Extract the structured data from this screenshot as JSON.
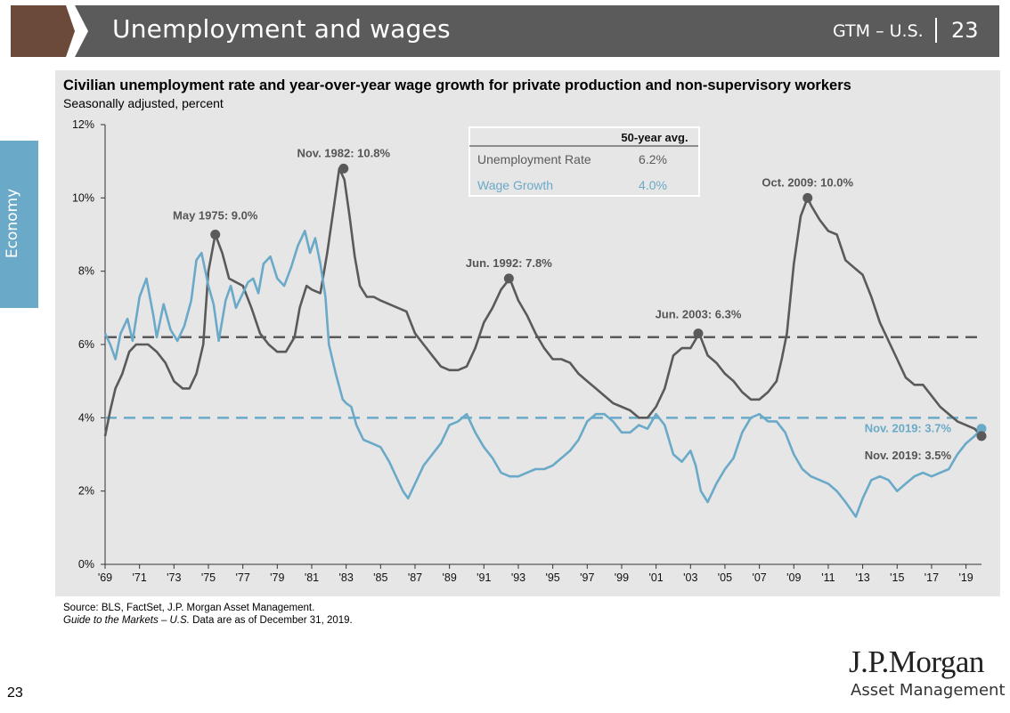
{
  "header": {
    "title": "Unemployment and wages",
    "gtm": "GTM – U.S.",
    "page": "23"
  },
  "sidebar": {
    "label": "Economy"
  },
  "chart_data": {
    "type": "line",
    "title": "Civilian unemployment rate and year-over-year wage growth for private production and non-supervisory workers",
    "subtitle": "Seasonally adjusted, percent",
    "xlim": [
      1969.0,
      2019.9
    ],
    "ylim": [
      0,
      12
    ],
    "yticks": [
      0,
      2,
      4,
      6,
      8,
      10,
      12
    ],
    "ytick_labels": [
      "0%",
      "2%",
      "4%",
      "6%",
      "8%",
      "10%",
      "12%"
    ],
    "xticks": [
      1969,
      1971,
      1973,
      1975,
      1977,
      1979,
      1981,
      1983,
      1985,
      1987,
      1989,
      1991,
      1993,
      1995,
      1997,
      1999,
      2001,
      2003,
      2005,
      2007,
      2009,
      2011,
      2013,
      2015,
      2017,
      2019
    ],
    "xtick_labels": [
      "'69",
      "'71",
      "'73",
      "'75",
      "'77",
      "'79",
      "'81",
      "'83",
      "'85",
      "'87",
      "'89",
      "'91",
      "'93",
      "'95",
      "'97",
      "'99",
      "'01",
      "'03",
      "'05",
      "'07",
      "'09",
      "'11",
      "'13",
      "'15",
      "'17",
      "'19"
    ],
    "colors": {
      "unemployment": "#5a5a5a",
      "wage": "#6aaac8"
    },
    "grid": false,
    "series": [
      {
        "name": "Unemployment Rate",
        "color": "#5a5a5a",
        "x": [
          1969.0,
          1969.3,
          1969.6,
          1970.0,
          1970.4,
          1970.8,
          1971.0,
          1971.5,
          1972.0,
          1972.5,
          1973.0,
          1973.5,
          1973.9,
          1974.3,
          1974.7,
          1975.0,
          1975.4,
          1975.8,
          1976.2,
          1976.6,
          1977.0,
          1977.5,
          1978.0,
          1978.5,
          1979.0,
          1979.5,
          1980.0,
          1980.3,
          1980.7,
          1981.0,
          1981.5,
          1981.9,
          1982.3,
          1982.6,
          1982.9,
          1983.2,
          1983.5,
          1983.8,
          1984.2,
          1984.6,
          1985.0,
          1985.5,
          1986.0,
          1986.5,
          1987.0,
          1987.5,
          1988.0,
          1988.5,
          1989.0,
          1989.5,
          1990.0,
          1990.5,
          1991.0,
          1991.5,
          1992.0,
          1992.5,
          1993.0,
          1993.5,
          1994.0,
          1994.5,
          1995.0,
          1995.5,
          1996.0,
          1996.5,
          1997.0,
          1997.5,
          1998.0,
          1998.5,
          1999.0,
          1999.5,
          2000.0,
          2000.5,
          2001.0,
          2001.5,
          2002.0,
          2002.5,
          2003.0,
          2003.5,
          2004.0,
          2004.5,
          2005.0,
          2005.5,
          2006.0,
          2006.5,
          2007.0,
          2007.5,
          2008.0,
          2008.3,
          2008.6,
          2009.0,
          2009.4,
          2009.8,
          2010.0,
          2010.5,
          2011.0,
          2011.5,
          2012.0,
          2012.5,
          2013.0,
          2013.5,
          2014.0,
          2014.5,
          2015.0,
          2015.5,
          2016.0,
          2016.5,
          2017.0,
          2017.5,
          2018.0,
          2018.5,
          2019.0,
          2019.5,
          2019.9
        ],
        "y": [
          3.5,
          4.2,
          4.8,
          5.2,
          5.8,
          6.0,
          6.0,
          6.0,
          5.8,
          5.5,
          5.0,
          4.8,
          4.8,
          5.2,
          6.0,
          8.0,
          9.0,
          8.5,
          7.8,
          7.7,
          7.6,
          7.0,
          6.3,
          6.0,
          5.8,
          5.8,
          6.2,
          7.0,
          7.6,
          7.5,
          7.4,
          8.5,
          9.8,
          10.8,
          10.5,
          9.5,
          8.4,
          7.6,
          7.3,
          7.3,
          7.2,
          7.1,
          7.0,
          6.9,
          6.3,
          6.0,
          5.7,
          5.4,
          5.3,
          5.3,
          5.4,
          5.9,
          6.6,
          7.0,
          7.5,
          7.8,
          7.2,
          6.8,
          6.3,
          5.9,
          5.6,
          5.6,
          5.5,
          5.2,
          5.0,
          4.8,
          4.6,
          4.4,
          4.3,
          4.2,
          4.0,
          4.0,
          4.3,
          4.8,
          5.7,
          5.9,
          5.9,
          6.3,
          5.7,
          5.5,
          5.2,
          5.0,
          4.7,
          4.5,
          4.5,
          4.7,
          5.0,
          5.6,
          6.3,
          8.2,
          9.5,
          10.0,
          9.8,
          9.4,
          9.1,
          9.0,
          8.3,
          8.1,
          7.9,
          7.3,
          6.6,
          6.1,
          5.6,
          5.1,
          4.9,
          4.9,
          4.6,
          4.3,
          4.1,
          3.9,
          3.8,
          3.7,
          3.5
        ]
      },
      {
        "name": "Wage Growth",
        "color": "#6aaac8",
        "x": [
          1969.0,
          1969.3,
          1969.6,
          1969.9,
          1970.3,
          1970.6,
          1971.0,
          1971.4,
          1971.8,
          1972.0,
          1972.4,
          1972.8,
          1973.2,
          1973.6,
          1974.0,
          1974.3,
          1974.6,
          1975.0,
          1975.3,
          1975.6,
          1976.0,
          1976.3,
          1976.6,
          1977.0,
          1977.3,
          1977.6,
          1977.9,
          1978.2,
          1978.6,
          1979.0,
          1979.4,
          1979.8,
          1980.2,
          1980.6,
          1980.9,
          1981.2,
          1981.5,
          1981.8,
          1982.0,
          1982.4,
          1982.8,
          1983.0,
          1983.3,
          1983.6,
          1984.0,
          1984.5,
          1985.0,
          1985.5,
          1986.0,
          1986.3,
          1986.6,
          1987.0,
          1987.5,
          1988.0,
          1988.5,
          1989.0,
          1989.5,
          1990.0,
          1990.5,
          1991.0,
          1991.5,
          1992.0,
          1992.5,
          1993.0,
          1993.5,
          1994.0,
          1994.5,
          1995.0,
          1995.5,
          1996.0,
          1996.5,
          1997.0,
          1997.5,
          1998.0,
          1998.5,
          1999.0,
          1999.5,
          2000.0,
          2000.5,
          2001.0,
          2001.5,
          2002.0,
          2002.5,
          2003.0,
          2003.3,
          2003.6,
          2004.0,
          2004.5,
          2005.0,
          2005.5,
          2006.0,
          2006.5,
          2007.0,
          2007.5,
          2008.0,
          2008.5,
          2009.0,
          2009.5,
          2010.0,
          2010.5,
          2011.0,
          2011.5,
          2012.0,
          2012.3,
          2012.6,
          2013.0,
          2013.5,
          2014.0,
          2014.5,
          2015.0,
          2015.5,
          2016.0,
          2016.5,
          2017.0,
          2017.5,
          2018.0,
          2018.5,
          2019.0,
          2019.5,
          2019.9
        ],
        "y": [
          6.3,
          6.0,
          5.6,
          6.3,
          6.7,
          6.1,
          7.3,
          7.8,
          6.8,
          6.2,
          7.1,
          6.4,
          6.1,
          6.5,
          7.2,
          8.3,
          8.5,
          7.6,
          7.1,
          6.1,
          7.2,
          7.6,
          7.0,
          7.4,
          7.7,
          7.8,
          7.4,
          8.2,
          8.4,
          7.8,
          7.6,
          8.1,
          8.7,
          9.1,
          8.5,
          8.9,
          8.2,
          7.3,
          6.0,
          5.2,
          4.5,
          4.4,
          4.3,
          3.8,
          3.4,
          3.3,
          3.2,
          2.8,
          2.3,
          2.0,
          1.8,
          2.2,
          2.7,
          3.0,
          3.3,
          3.8,
          3.9,
          4.1,
          3.6,
          3.2,
          2.9,
          2.5,
          2.4,
          2.4,
          2.5,
          2.6,
          2.6,
          2.7,
          2.9,
          3.1,
          3.4,
          3.9,
          4.1,
          4.1,
          3.9,
          3.6,
          3.6,
          3.8,
          3.7,
          4.1,
          3.8,
          3.0,
          2.8,
          3.1,
          2.7,
          2.0,
          1.7,
          2.2,
          2.6,
          2.9,
          3.6,
          4.0,
          4.1,
          3.9,
          3.9,
          3.6,
          3.0,
          2.6,
          2.4,
          2.3,
          2.2,
          2.0,
          1.7,
          1.5,
          1.3,
          1.8,
          2.3,
          2.4,
          2.3,
          2.0,
          2.2,
          2.4,
          2.5,
          2.4,
          2.5,
          2.6,
          3.0,
          3.3,
          3.5,
          3.7
        ]
      }
    ],
    "avg_lines": [
      {
        "name": "Unemployment Rate",
        "value": 6.2,
        "color": "#5a5a5a"
      },
      {
        "name": "Wage Growth",
        "value": 4.0,
        "color": "#6aaac8"
      }
    ],
    "annotations": [
      {
        "text": "May 1975: 9.0%",
        "x": 1975.4,
        "y": 9.0,
        "series": "Unemployment Rate"
      },
      {
        "text": "Nov. 1982: 10.8%",
        "x": 1982.85,
        "y": 10.8,
        "series": "Unemployment Rate"
      },
      {
        "text": "Jun. 1992: 7.8%",
        "x": 1992.45,
        "y": 7.8,
        "series": "Unemployment Rate"
      },
      {
        "text": "Jun. 2003: 6.3%",
        "x": 2003.45,
        "y": 6.3,
        "series": "Unemployment Rate"
      },
      {
        "text": "Oct. 2009: 10.0%",
        "x": 2009.8,
        "y": 10.0,
        "series": "Unemployment Rate"
      },
      {
        "text": "Nov. 2019: 3.7%",
        "x": 2019.9,
        "y": 3.7,
        "series": "Wage Growth"
      },
      {
        "text": "Nov. 2019: 3.5%",
        "x": 2019.9,
        "y": 3.5,
        "series": "Unemployment Rate"
      }
    ],
    "table": {
      "header": "50-year avg.",
      "rows": [
        {
          "label": "Unemployment Rate",
          "value": "6.2%",
          "color": "#5a5a5a"
        },
        {
          "label": "Wage Growth",
          "value": "4.0%",
          "color": "#6aaac8"
        }
      ]
    }
  },
  "footer": {
    "source": "Source: BLS, FactSet, J.P. Morgan Asset Management.",
    "guide_italic": "Guide to the Markets – U.S.",
    "guide_rest": " Data are as of December 31, 2019.",
    "page_number": "23",
    "logo_line1": "J.P.Morgan",
    "logo_line2": "Asset Management"
  }
}
